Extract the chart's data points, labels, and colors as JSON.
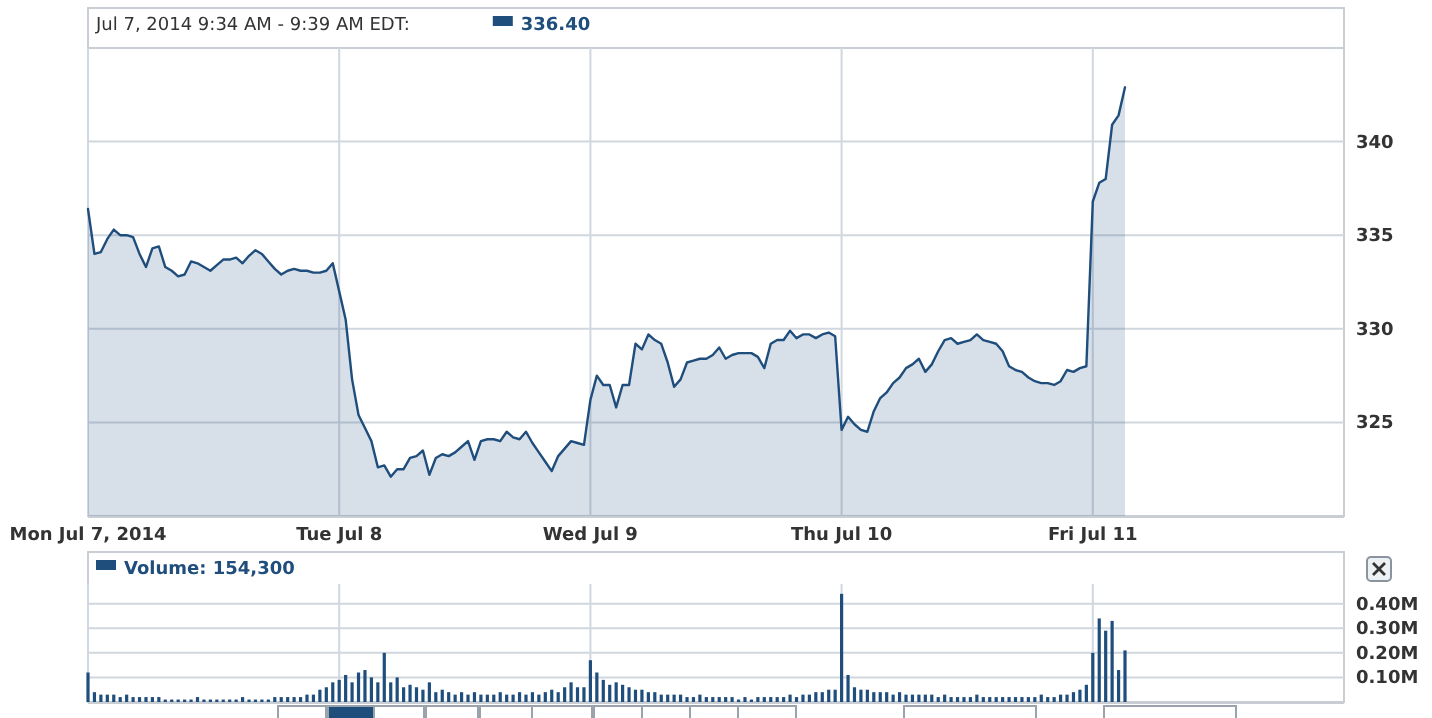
{
  "chart_data": [
    {
      "type": "area",
      "legend_title": "Jul 7, 2014 9:34 AM - 9:39 AM EDT:",
      "legend": "top left",
      "grid": true,
      "categories": [
        "Mon Jul 7, 2014",
        null,
        null,
        null,
        null,
        null,
        null,
        null,
        null,
        null,
        null,
        null,
        null,
        null,
        null,
        null,
        null,
        null,
        null,
        null,
        null,
        null,
        null,
        null,
        null,
        null,
        null,
        null,
        null,
        null,
        null,
        null,
        null,
        null,
        null,
        null,
        null,
        null,
        null,
        "Tue Jul 8",
        null,
        null,
        null,
        null,
        null,
        null,
        null,
        null,
        null,
        null,
        null,
        null,
        null,
        null,
        null,
        null,
        null,
        null,
        null,
        null,
        null,
        null,
        null,
        null,
        null,
        null,
        null,
        null,
        null,
        null,
        null,
        null,
        null,
        null,
        null,
        null,
        null,
        null,
        "Wed Jul 9",
        null,
        null,
        null,
        null,
        null,
        null,
        null,
        null,
        null,
        null,
        null,
        null,
        null,
        null,
        null,
        null,
        null,
        null,
        null,
        null,
        null,
        null,
        null,
        null,
        null,
        null,
        null,
        null,
        null,
        null,
        null,
        null,
        null,
        null,
        null,
        null,
        null,
        null,
        "Thu Jul 10",
        null,
        null,
        null,
        null,
        null,
        null,
        null,
        null,
        null,
        null,
        null,
        null,
        null,
        null,
        null,
        null,
        null,
        null,
        null,
        null,
        null,
        null,
        null,
        null,
        null,
        null,
        null,
        null,
        null,
        null,
        null,
        null,
        null,
        null,
        null,
        null,
        null,
        null,
        "Fri Jul 11",
        null,
        null,
        null,
        null,
        null,
        null,
        null,
        null,
        null,
        null,
        null,
        null,
        null,
        null,
        null,
        null,
        null,
        null,
        null,
        null,
        null,
        null,
        null,
        null,
        null,
        null,
        null,
        null,
        null,
        null,
        null,
        null,
        null,
        null,
        null,
        null,
        null,
        null
      ],
      "series": [
        {
          "name": "336.40",
          "color": "#1f4e7d",
          "values": [
            336.4,
            334.0,
            334.1,
            334.8,
            335.3,
            335.0,
            335.0,
            334.9,
            334.0,
            333.3,
            334.3,
            334.4,
            333.3,
            333.1,
            332.8,
            332.9,
            333.6,
            333.5,
            333.3,
            333.1,
            333.4,
            333.7,
            333.7,
            333.8,
            333.5,
            333.9,
            334.2,
            334.0,
            333.6,
            333.2,
            332.9,
            333.1,
            333.2,
            333.1,
            333.1,
            333.0,
            333.0,
            333.1,
            333.5,
            332.0,
            330.5,
            327.3,
            325.4,
            324.7,
            324.0,
            322.6,
            322.7,
            322.1,
            322.5,
            322.5,
            323.1,
            323.2,
            323.5,
            322.2,
            323.1,
            323.3,
            323.2,
            323.4,
            323.7,
            324.0,
            323.0,
            324.0,
            324.1,
            324.1,
            324.0,
            324.5,
            324.2,
            324.1,
            324.5,
            323.9,
            323.4,
            322.9,
            322.4,
            323.2,
            323.6,
            324.0,
            323.9,
            323.8,
            326.2,
            327.5,
            327.0,
            327.0,
            325.8,
            327.0,
            327.0,
            329.2,
            328.9,
            329.7,
            329.4,
            329.2,
            328.2,
            326.9,
            327.3,
            328.2,
            328.3,
            328.4,
            328.4,
            328.6,
            329.0,
            328.4,
            328.6,
            328.7,
            328.7,
            328.7,
            328.5,
            327.9,
            329.2,
            329.4,
            329.4,
            329.9,
            329.5,
            329.7,
            329.7,
            329.5,
            329.7,
            329.8,
            329.6,
            324.6,
            325.3,
            324.9,
            324.6,
            324.5,
            325.6,
            326.3,
            326.6,
            327.1,
            327.4,
            327.9,
            328.1,
            328.4,
            327.7,
            328.1,
            328.8,
            329.4,
            329.5,
            329.2,
            329.3,
            329.4,
            329.7,
            329.4,
            329.3,
            329.2,
            328.8,
            328.0,
            327.8,
            327.7,
            327.4,
            327.2,
            327.1,
            327.1,
            327.0,
            327.2,
            327.8,
            327.7,
            327.9,
            328.0,
            336.8,
            337.8,
            338.0,
            340.9,
            341.4,
            342.9,
            null,
            null,
            null,
            null,
            null,
            null,
            null,
            null,
            null,
            null,
            null,
            null,
            null,
            null,
            null,
            null,
            null,
            null,
            null,
            null,
            null,
            null,
            null,
            null,
            null,
            null,
            null,
            null,
            null,
            null,
            null,
            null,
            null
          ]
        }
      ],
      "ylim": [
        320,
        345
      ],
      "yticks": [
        325,
        330,
        335,
        340
      ]
    },
    {
      "type": "bar",
      "legend": "top left",
      "grid": true,
      "tick_labels": "y",
      "categories": [
        null,
        null,
        null,
        null,
        null,
        null,
        null,
        null,
        null,
        null,
        null,
        null,
        null,
        null,
        null,
        null,
        null,
        null,
        null,
        null,
        null,
        null,
        null,
        null,
        null,
        null,
        null,
        null,
        null,
        null,
        null,
        null,
        null,
        null,
        null,
        null,
        null,
        null,
        null,
        null,
        null,
        null,
        null,
        null,
        null,
        null,
        null,
        null,
        null,
        null,
        null,
        null,
        null,
        null,
        null,
        null,
        null,
        null,
        null,
        null,
        null,
        null,
        null,
        null,
        null,
        null,
        null,
        null,
        null,
        null,
        null,
        null,
        null,
        null,
        null,
        null,
        null,
        null,
        null,
        null,
        null,
        null,
        null,
        null,
        null,
        null,
        null,
        null,
        null,
        null,
        null,
        null,
        null,
        null,
        null,
        null,
        null,
        null,
        null,
        null,
        null,
        null,
        null,
        null,
        null,
        null,
        null,
        null,
        null,
        null,
        null,
        null,
        null,
        null,
        null,
        null,
        null,
        null,
        null,
        null,
        null,
        null,
        null,
        null,
        null,
        null,
        null,
        null,
        null,
        null,
        null,
        null,
        null,
        null,
        null,
        null,
        null,
        null,
        null,
        null,
        null,
        null,
        null,
        null,
        null,
        null,
        null,
        null,
        null,
        null,
        null,
        null,
        null,
        null,
        null,
        null,
        null,
        null,
        null,
        null,
        null,
        null,
        null,
        null,
        null,
        null,
        null,
        null,
        null,
        null,
        null,
        null,
        null,
        null,
        null,
        null,
        null,
        null,
        null,
        null,
        null,
        null,
        null,
        null,
        null,
        null,
        null,
        null,
        null,
        null,
        null,
        null,
        null,
        null,
        null
      ],
      "series": [
        {
          "name": "Volume: 154,300",
          "color": "#1f4e7d",
          "values": [
            0.12,
            0.04,
            0.03,
            0.03,
            0.03,
            0.02,
            0.03,
            0.02,
            0.02,
            0.02,
            0.02,
            0.02,
            0.01,
            0.01,
            0.01,
            0.01,
            0.01,
            0.02,
            0.01,
            0.01,
            0.01,
            0.01,
            0.01,
            0.01,
            0.02,
            0.01,
            0.01,
            0.01,
            0.01,
            0.02,
            0.02,
            0.02,
            0.02,
            0.02,
            0.03,
            0.03,
            0.05,
            0.06,
            0.08,
            0.09,
            0.11,
            0.08,
            0.12,
            0.13,
            0.1,
            0.08,
            0.2,
            0.08,
            0.1,
            0.06,
            0.07,
            0.06,
            0.05,
            0.08,
            0.04,
            0.05,
            0.04,
            0.03,
            0.04,
            0.03,
            0.04,
            0.03,
            0.03,
            0.03,
            0.04,
            0.03,
            0.03,
            0.04,
            0.03,
            0.04,
            0.03,
            0.04,
            0.05,
            0.04,
            0.06,
            0.08,
            0.06,
            0.06,
            0.17,
            0.12,
            0.09,
            0.07,
            0.08,
            0.07,
            0.06,
            0.05,
            0.05,
            0.04,
            0.04,
            0.03,
            0.03,
            0.03,
            0.03,
            0.02,
            0.02,
            0.03,
            0.02,
            0.02,
            0.02,
            0.02,
            0.02,
            0.01,
            0.02,
            0.01,
            0.02,
            0.02,
            0.02,
            0.02,
            0.02,
            0.03,
            0.02,
            0.03,
            0.03,
            0.04,
            0.04,
            0.05,
            0.05,
            0.44,
            0.11,
            0.06,
            0.05,
            0.05,
            0.04,
            0.04,
            0.04,
            0.03,
            0.04,
            0.03,
            0.03,
            0.03,
            0.03,
            0.03,
            0.02,
            0.03,
            0.02,
            0.02,
            0.02,
            0.02,
            0.03,
            0.02,
            0.02,
            0.02,
            0.02,
            0.02,
            0.02,
            0.02,
            0.02,
            0.02,
            0.03,
            0.02,
            0.02,
            0.03,
            0.03,
            0.04,
            0.05,
            0.07,
            0.2,
            0.34,
            0.29,
            0.33,
            0.13,
            0.21,
            null,
            null,
            null,
            null,
            null,
            null,
            null,
            null,
            null,
            null,
            null,
            null,
            null,
            null,
            null,
            null,
            null,
            null,
            null,
            null,
            null,
            null,
            null,
            null,
            null,
            null,
            null,
            null,
            null,
            null,
            null,
            null,
            null
          ]
        }
      ],
      "ylim": [
        0,
        0.48
      ],
      "yticks": [
        {
          "value": 0.1,
          "label": "0.10M"
        },
        {
          "value": 0.2,
          "label": "0.20M"
        },
        {
          "value": 0.3,
          "label": "0.30M"
        },
        {
          "value": 0.4,
          "label": "0.40M"
        }
      ]
    }
  ]
}
